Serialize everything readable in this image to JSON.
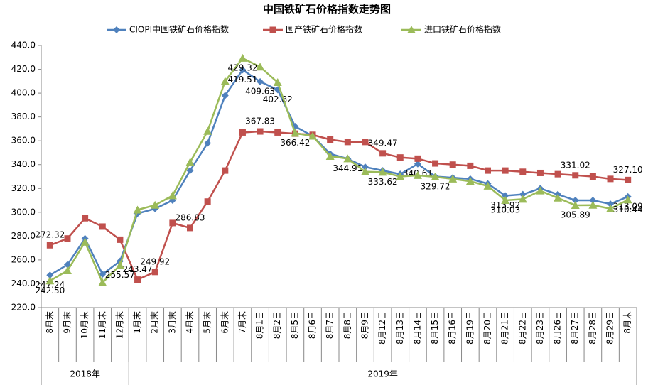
{
  "chart_data": {
    "type": "line",
    "title": "中国铁矿石价格指数走势图",
    "categories": [
      "8月末",
      "9月末",
      "10月末",
      "11月末",
      "12月末",
      "1月末",
      "2月末",
      "3月末",
      "4月末",
      "5月末",
      "6月末",
      "7月末",
      "8月1日",
      "8月2日",
      "8月5日",
      "8月6日",
      "8月7日",
      "8月8日",
      "8月9日",
      "8月12日",
      "8月13日",
      "8月14日",
      "8月15日",
      "8月16日",
      "8月19日",
      "8月20日",
      "8月21日",
      "8月22日",
      "8月23日",
      "8月26日",
      "8月27日",
      "8月28日",
      "8月29日",
      "8月末"
    ],
    "x_groups": [
      {
        "label": "2018年",
        "count": 5
      },
      {
        "label": "2019年",
        "count": 29
      }
    ],
    "ylim": [
      220,
      440
    ],
    "yticks": [
      {
        "value": 220,
        "label": "220.0"
      },
      {
        "value": 240,
        "label": "240.0"
      },
      {
        "value": 260,
        "label": "260.0"
      },
      {
        "value": 280,
        "label": "280.0"
      },
      {
        "value": 300,
        "label": "300.0"
      },
      {
        "value": 320,
        "label": "320.0"
      },
      {
        "value": 340,
        "label": "340.0"
      },
      {
        "value": 360,
        "label": "360.0"
      },
      {
        "value": 380,
        "label": "380.0"
      },
      {
        "value": 400,
        "label": "400.0"
      },
      {
        "value": 420,
        "label": "420.0"
      },
      {
        "value": 440,
        "label": "440.0"
      }
    ],
    "series": [
      {
        "name": "CIOPI中国铁矿石价格指数",
        "color": "#4f81bd",
        "marker": "diamond",
        "values": [
          247.24,
          256,
          278,
          248,
          259,
          299,
          303,
          310,
          335,
          358,
          398,
          419.51,
          409.63,
          402.82,
          372,
          364,
          349,
          344.91,
          338,
          335,
          332,
          340.61,
          330,
          329,
          328,
          324,
          313.92,
          315,
          320,
          315,
          310,
          310,
          307,
          313.09
        ],
        "value_labels": [
          "247.24",
          null,
          null,
          null,
          null,
          null,
          null,
          null,
          null,
          null,
          null,
          "419.51",
          "409.63",
          "402.82",
          null,
          null,
          null,
          "344.91",
          null,
          null,
          null,
          "340.61",
          null,
          null,
          null,
          null,
          "313.92",
          null,
          null,
          null,
          null,
          null,
          null,
          "313.09"
        ]
      },
      {
        "name": "国产铁矿石价格指数",
        "color": "#c0504d",
        "marker": "square",
        "values": [
          272.32,
          278,
          295,
          288,
          277,
          243.47,
          249.92,
          291,
          286.83,
          309,
          335,
          367,
          367.83,
          367,
          366,
          365,
          361,
          359,
          359,
          349.47,
          346,
          345,
          341,
          340,
          339,
          335,
          335,
          334,
          333,
          332,
          331.02,
          330,
          328,
          327.1
        ],
        "value_labels": [
          "272.32",
          null,
          null,
          null,
          null,
          "243.47",
          "249.92",
          null,
          "286.83",
          null,
          null,
          null,
          "367.83",
          null,
          null,
          null,
          null,
          null,
          null,
          "349.47",
          null,
          null,
          null,
          null,
          null,
          null,
          null,
          null,
          null,
          null,
          "331.02",
          null,
          null,
          "327.10"
        ]
      },
      {
        "name": "进口铁矿石价格指数",
        "color": "#9bbb59",
        "marker": "triangle",
        "values": [
          242.5,
          251,
          275,
          241,
          255.57,
          302,
          306,
          314,
          342,
          368,
          410,
          429.32,
          422,
          409,
          366.42,
          364,
          347,
          345,
          334,
          333.62,
          330,
          331,
          329.72,
          328,
          326,
          322,
          310.03,
          311,
          318,
          312,
          305.89,
          306,
          303,
          310.44
        ],
        "value_labels": [
          "242.50",
          null,
          null,
          null,
          "255.57",
          null,
          null,
          null,
          null,
          null,
          null,
          "429.32",
          null,
          null,
          "366.42",
          null,
          null,
          null,
          null,
          "333.62",
          null,
          null,
          "329.72",
          null,
          null,
          null,
          "310.03",
          null,
          null,
          null,
          "305.89",
          null,
          null,
          "310.44"
        ]
      }
    ]
  }
}
